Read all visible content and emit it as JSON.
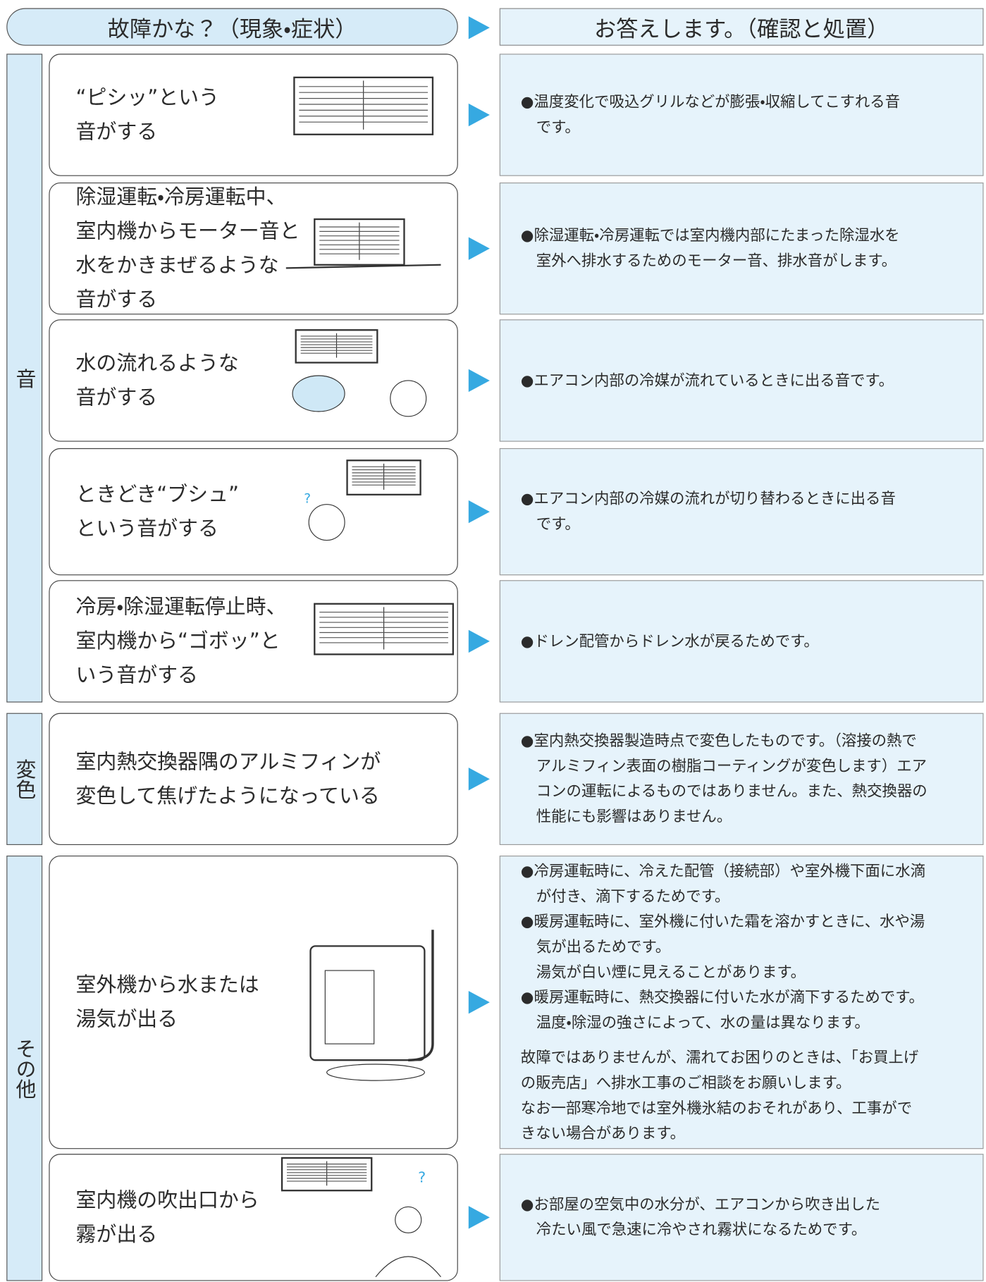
{
  "header": {
    "left_title": "故障かな？（現象・症状）",
    "right_title": "お答えします。（確認と処置）"
  },
  "categories": [
    {
      "label": "音",
      "rows": [
        {
          "symptom": [
            "“ピシッ”という",
            "音がする"
          ],
          "answer": [
            [
              "●温度変化で吸込グリルなどが膨張・収縮してこすれる音",
              "です。"
            ]
          ]
        },
        {
          "symptom": [
            "除湿運転・冷房運転中、",
            "室内機からモーター音と",
            "水をかきまぜるような",
            "音がする"
          ],
          "answer": [
            [
              "●除湿運転・冷房運転では室内機内部にたまった除湿水を",
              "室外へ排水するためのモーター音、排水音がします。"
            ]
          ]
        },
        {
          "symptom": [
            "水の流れるような",
            "音がする"
          ],
          "answer": [
            [
              "●エアコン内部の冷媒が流れているときに出る音です。"
            ]
          ]
        },
        {
          "symptom": [
            "ときどき“ブシュ”",
            "という音がする"
          ],
          "answer": [
            [
              "●エアコン内部の冷媒の流れが切り替わるときに出る音",
              "です。"
            ]
          ]
        },
        {
          "symptom": [
            "冷房・除湿運転停止時、",
            "室内機から“ゴボッ”と",
            "いう音がする"
          ],
          "answer": [
            [
              "●ドレン配管からドレン水が戻るためです。"
            ]
          ]
        }
      ]
    },
    {
      "label": "変色",
      "rows": [
        {
          "symptom": [
            "室内熱交換器隅のアルミフィンが",
            "変色して焦げたようになっている"
          ],
          "answer": [
            [
              "●室内熱交換器製造時点で変色したものです。（溶接の熱で",
              "アルミフィン表面の樹脂コーティングが変色します）エア",
              "コンの運転によるものではありません。また、熱交換器の",
              "性能にも影響はありません。"
            ]
          ]
        }
      ]
    },
    {
      "label": "その他",
      "rows": [
        {
          "symptom": [
            "室外機から水または",
            "湯気が出る"
          ],
          "answer": [
            [
              "●冷房運転時に、冷えた配管（接続部）や室外機下面に水滴",
              "が付き、滴下するためです。"
            ],
            [
              "●暖房運転時に、室外機に付いた霜を溶かすときに、水や湯",
              "気が出るためです。",
              "湯気が白い煙に見えることがあります。"
            ],
            [
              "●暖房運転時に、熱交換器に付いた水が滴下するためです。",
              "温度・除湿の強さによって、水の量は異なります。"
            ]
          ],
          "note": [
            "故障ではありませんが、濡れてお困りのときは、「お買上げ",
            "の販売店」へ排水工事のご相談をお願いします。",
            "なお一部寒冷地では室外機氷結のおそれがあり、工事がで",
            "きない場合があります。"
          ]
        },
        {
          "symptom": [
            "室内機の吹出口から",
            "霧が出る"
          ],
          "answer": [
            [
              "●お部屋の空気中の水分が、エアコンから吹き出した",
              "冷たい風で急速に冷やされ霧状になるためです。"
            ]
          ]
        }
      ]
    }
  ]
}
